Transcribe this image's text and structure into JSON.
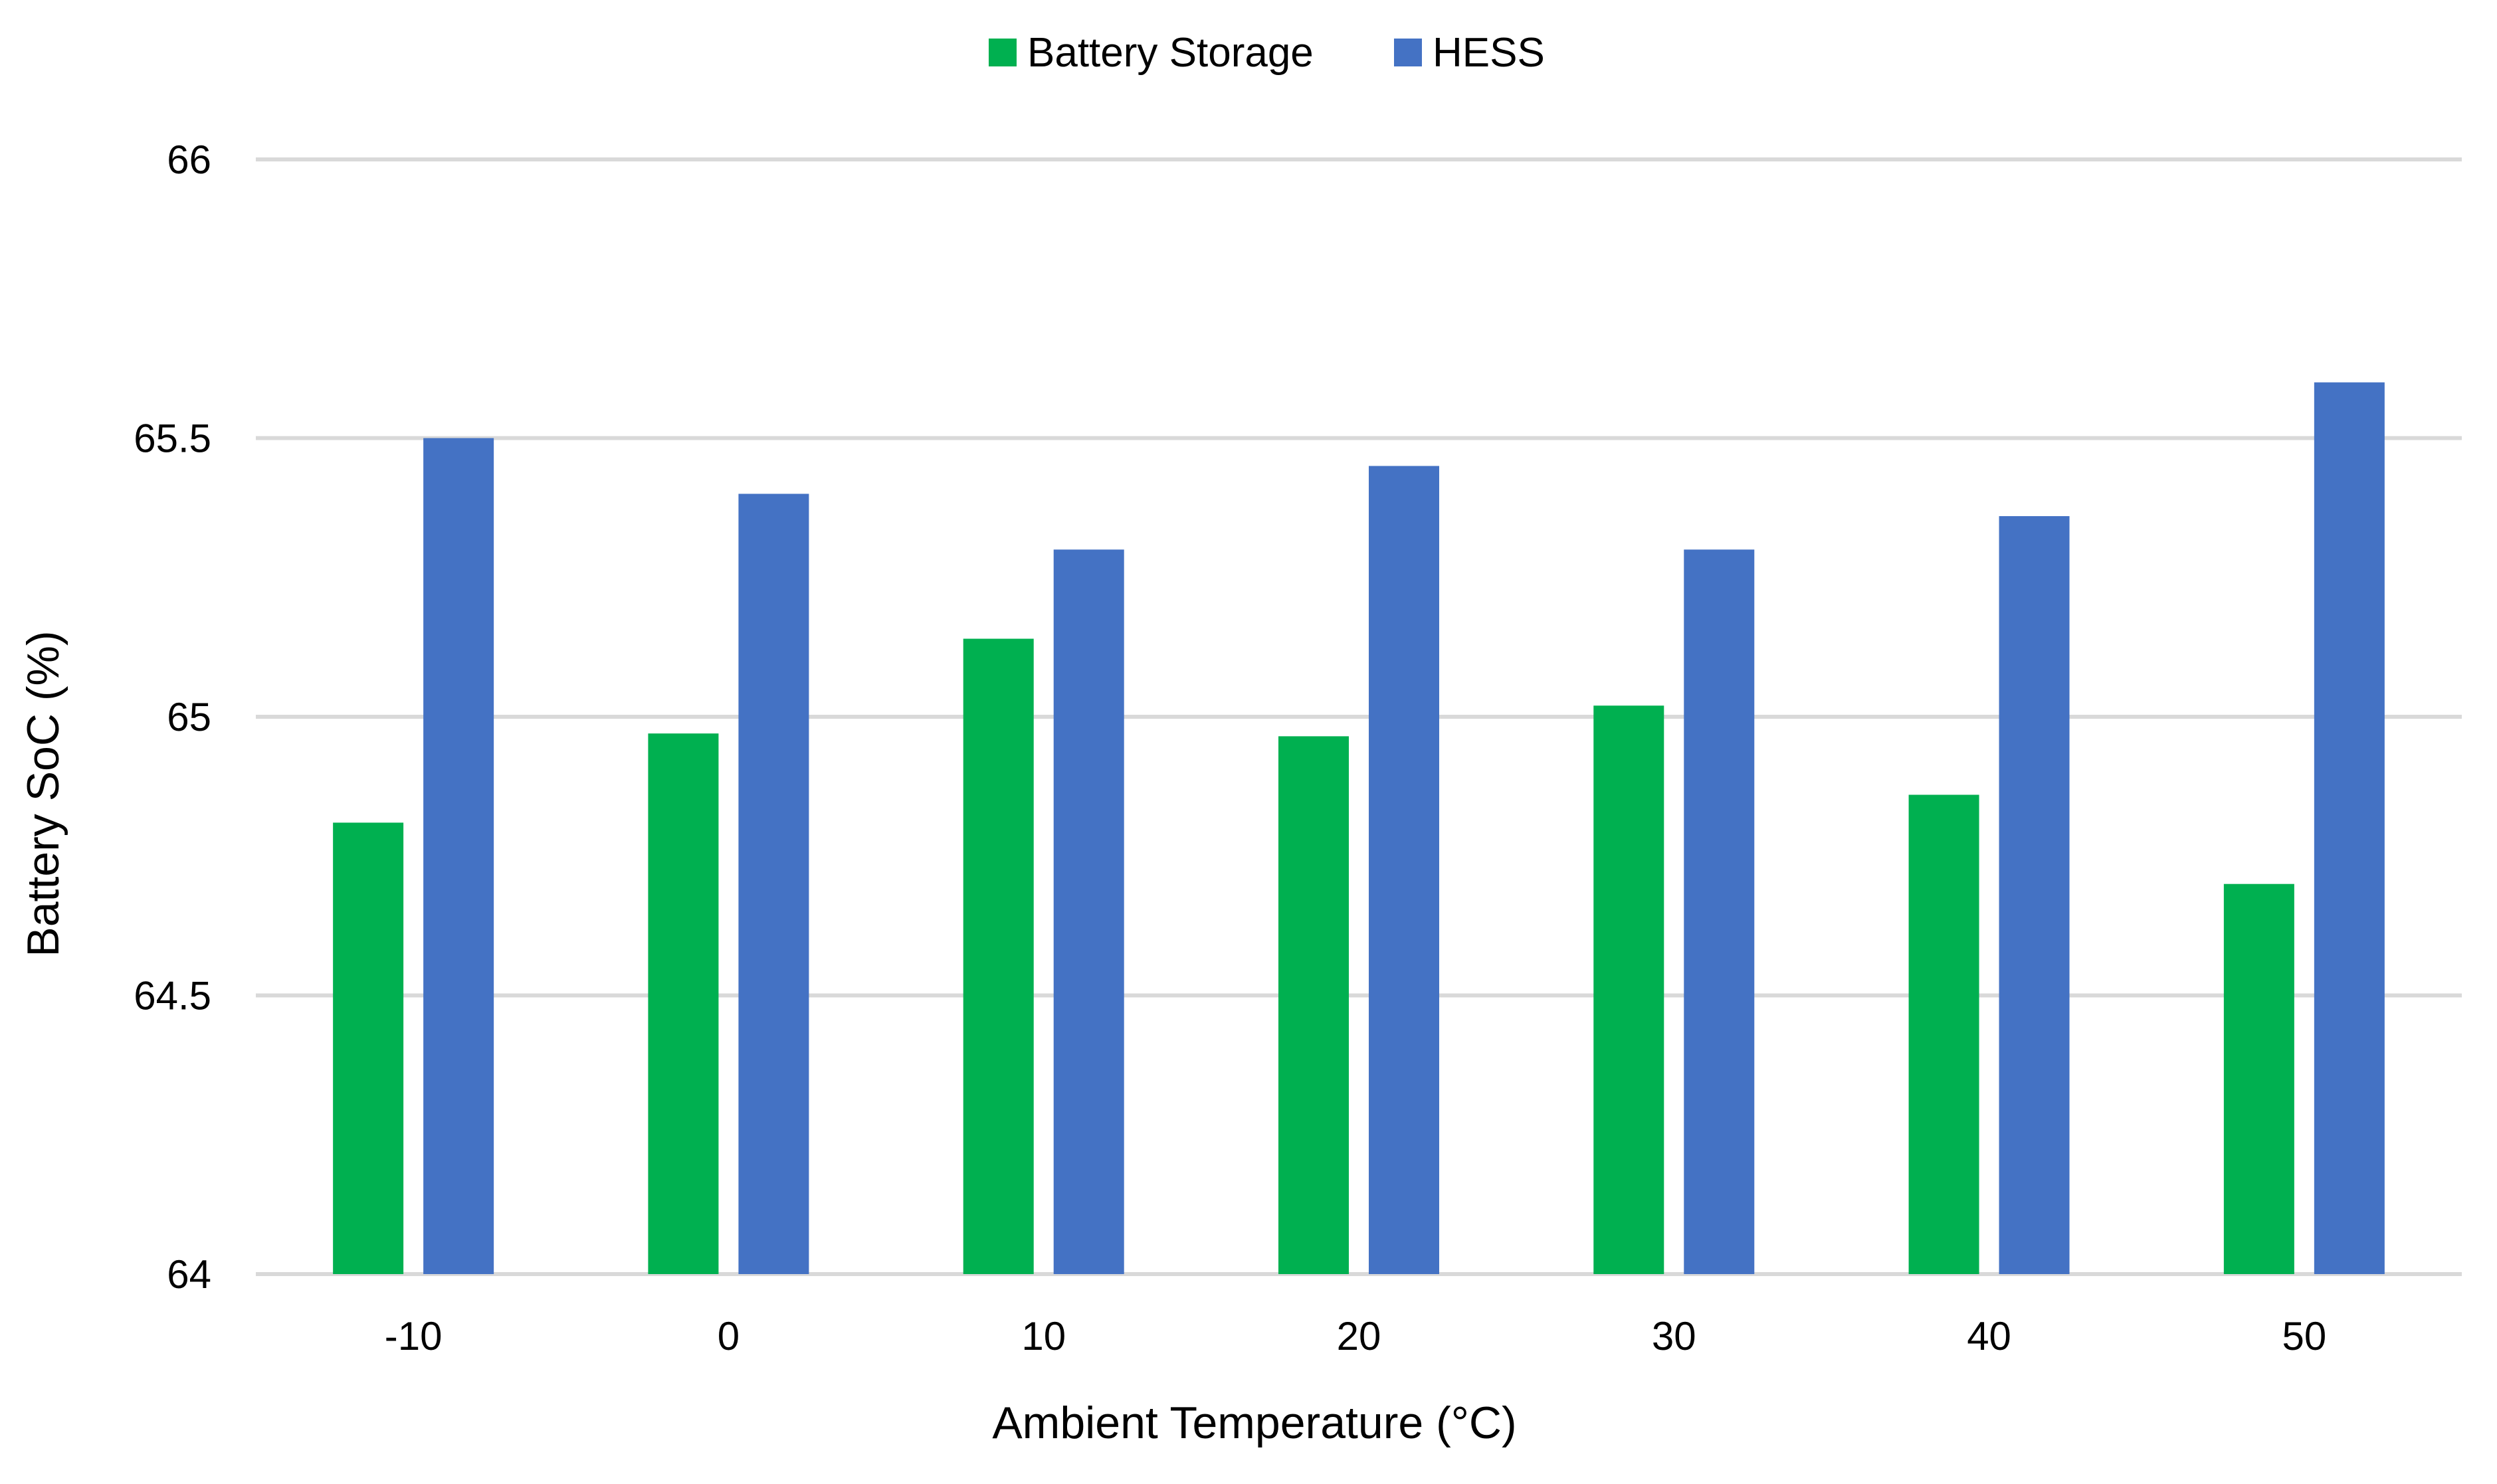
{
  "chart_data": {
    "type": "bar",
    "categories": [
      "-10",
      "0",
      "10",
      "20",
      "30",
      "40",
      "50"
    ],
    "series": [
      {
        "name": "Battery Storage",
        "color": "#00b050",
        "values": [
          64.81,
          64.97,
          65.14,
          64.965,
          65.02,
          64.86,
          64.7
        ]
      },
      {
        "name": "HESS",
        "color": "#4472c4",
        "values": [
          65.5,
          65.4,
          65.3,
          65.45,
          65.3,
          65.36,
          65.6
        ]
      }
    ],
    "xlabel": "Ambient Temperature (°C)",
    "ylabel": "Battery SoC  (%)",
    "ylim": [
      64,
      66
    ],
    "yticks": [
      "64",
      "64.5",
      "65",
      "65.5",
      "66"
    ],
    "grid": true,
    "legend_position": "top-center"
  }
}
